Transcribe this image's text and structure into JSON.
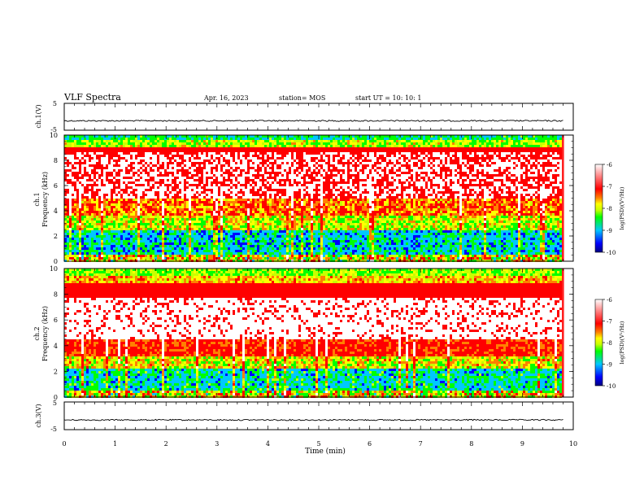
{
  "header": {
    "title": "VLF Spectra",
    "date": "Apr. 16, 2023",
    "station": "station= MOS",
    "start": "start  UT =   10: 10: 1"
  },
  "chart_data": [
    {
      "type": "line",
      "ylabel": "ch.1(V)",
      "ylim": [
        -5,
        5
      ],
      "yticks": [
        "5",
        "-5"
      ],
      "baseline": -1.5,
      "x": [
        0,
        10
      ],
      "series": []
    },
    {
      "type": "heatmap",
      "ylabel": "ch.1\nFrequency (kHz)",
      "ylim": [
        0,
        10
      ],
      "yticks": [
        "0",
        "2",
        "4",
        "6",
        "8",
        "10"
      ],
      "colorbar": {
        "label": "log(PSD)(V²/Hz)",
        "range": [
          -10,
          -6
        ],
        "ticks": [
          "-6",
          "-7",
          "-8",
          "-9",
          "-10"
        ],
        "colors": [
          "#000080",
          "#0000ff",
          "#00c8ff",
          "#00ff00",
          "#c8ff00",
          "#ffff00",
          "#ff8000",
          "#ff0000",
          "#ffffff"
        ]
      }
    },
    {
      "type": "heatmap",
      "ylabel": "ch.2\nFrequency (kHz)",
      "ylim": [
        0,
        10
      ],
      "yticks": [
        "0",
        "2",
        "4",
        "6",
        "8",
        "10"
      ],
      "colorbar": {
        "label": "log(PSD)(V²/Hz)",
        "range": [
          -10,
          -6
        ],
        "ticks": [
          "-6",
          "-7",
          "-8",
          "-9",
          "-10"
        ],
        "colors": [
          "#000080",
          "#0000ff",
          "#00c8ff",
          "#00ff00",
          "#c8ff00",
          "#ffff00",
          "#ff8000",
          "#ff0000",
          "#ffffff"
        ]
      }
    },
    {
      "type": "line",
      "ylabel": "ch.3(V)",
      "ylim": [
        -5,
        5
      ],
      "yticks": [
        "5",
        "-5"
      ],
      "baseline": -1.5,
      "x": [
        0,
        10
      ],
      "series": []
    }
  ],
  "xaxis": {
    "label": "Time (min)",
    "ticks": [
      "0",
      "1",
      "2",
      "3",
      "4",
      "5",
      "6",
      "7",
      "8",
      "9",
      "10"
    ],
    "range": [
      0,
      10
    ],
    "data_end": 9.82
  }
}
